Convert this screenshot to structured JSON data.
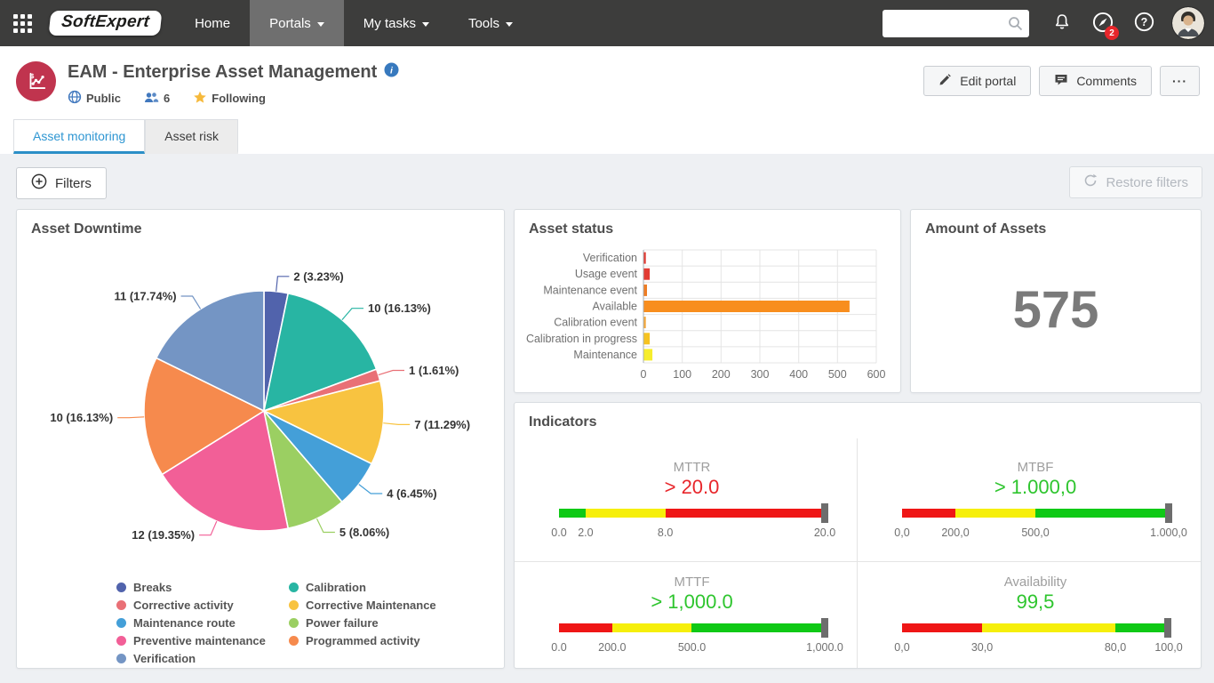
{
  "theme": {
    "navbar_bg": "#3d3d3c",
    "navbar_active_bg": "#6f6f6f",
    "accent_blue": "#2e96d2",
    "portal_icon_bg": "#c0344e",
    "badge_red": "#e8262b",
    "page_bg": "#eef0f3"
  },
  "icons": {
    "info": "i",
    "help": "?",
    "dollar": "$"
  },
  "navbar": {
    "logo": "SoftExpert",
    "items": [
      {
        "label": "Home",
        "active": false,
        "caret": false
      },
      {
        "label": "Portals",
        "active": true,
        "caret": true
      },
      {
        "label": "My tasks",
        "active": false,
        "caret": true
      },
      {
        "label": "Tools",
        "active": false,
        "caret": true
      }
    ],
    "search": {
      "value": "",
      "placeholder": ""
    },
    "monitoring_badge": "2"
  },
  "header": {
    "title": "EAM - Enterprise Asset Management",
    "visibility": "Public",
    "members_count": "6",
    "following": "Following",
    "edit_button": "Edit portal",
    "comments_button": "Comments",
    "more_button": "···"
  },
  "tabs": [
    {
      "label": "Asset monitoring",
      "active": true
    },
    {
      "label": "Asset risk",
      "active": false
    }
  ],
  "toolbar": {
    "filters_button": "Filters",
    "restore_button": "Restore filters"
  },
  "chart_data": [
    {
      "type": "pie",
      "title": "Asset Downtime",
      "labels": [
        "Breaks",
        "Calibration",
        "Corrective activity",
        "Corrective Maintenance",
        "Maintenance route",
        "Power failure",
        "Preventive maintenance",
        "Programmed activity",
        "Verification"
      ],
      "values": [
        2,
        10,
        1,
        7,
        4,
        5,
        12,
        10,
        11
      ],
      "labels_text": [
        "2 (3.23%)",
        "10 (16.13%)",
        "1 (1.61%)",
        "7 (11.29%)",
        "4 (6.45%)",
        "5 (8.06%)",
        "12 (19.35%)",
        "10 (16.13%)",
        "11 (17.74%)"
      ],
      "colors": [
        "#5163ac",
        "#28b5a3",
        "#e97076",
        "#f8c340",
        "#449fd8",
        "#9bcf62",
        "#f25f97",
        "#f68a4d",
        "#7495c4"
      ],
      "legend_position": "bottom"
    },
    {
      "type": "bar",
      "orientation": "horizontal",
      "title": "Asset status",
      "categories": [
        "Verification",
        "Usage event",
        "Maintenance event",
        "Available",
        "Calibration event",
        "Calibration in progress",
        "Maintenance"
      ],
      "values": [
        5,
        15,
        8,
        530,
        5,
        15,
        22
      ],
      "colors": [
        "#e23b33",
        "#e23b33",
        "#ef7d23",
        "#f88e1e",
        "#f4a93c",
        "#f6c321",
        "#f6ed2d"
      ],
      "xlim": [
        0,
        600
      ],
      "xticks": [
        0,
        100,
        200,
        300,
        400,
        500,
        600
      ],
      "grid": true
    },
    {
      "type": "number",
      "title": "Amount of Assets",
      "value": "575"
    },
    {
      "type": "bullet",
      "title": "Indicators",
      "gauges": [
        {
          "name": "MTTR",
          "value_text": "> 20.0",
          "value_color": "#e8262b",
          "segments": [
            {
              "to": 0.1,
              "color": "#0fc916"
            },
            {
              "to": 0.4,
              "color": "#f6ef0b"
            },
            {
              "to": 1,
              "color": "#ef1616"
            }
          ],
          "ticks": [
            {
              "label": "0.0",
              "pos": 0
            },
            {
              "label": "2.0",
              "pos": 10
            },
            {
              "label": "8.0",
              "pos": 40
            },
            {
              "label": "20.0",
              "pos": 100
            }
          ],
          "marker_pos": 100
        },
        {
          "name": "MTBF",
          "value_text": "> 1.000,0",
          "value_color": "#2ec52e",
          "segments": [
            {
              "to": 0.2,
              "color": "#ef1616"
            },
            {
              "to": 0.5,
              "color": "#f6ef0b"
            },
            {
              "to": 1,
              "color": "#0fc916"
            }
          ],
          "ticks": [
            {
              "label": "0,0",
              "pos": 0
            },
            {
              "label": "200,0",
              "pos": 20
            },
            {
              "label": "500,0",
              "pos": 50
            },
            {
              "label": "1.000,0",
              "pos": 100
            }
          ],
          "marker_pos": 100
        },
        {
          "name": "MTTF",
          "value_text": "> 1,000.0",
          "value_color": "#2ec52e",
          "segments": [
            {
              "to": 0.2,
              "color": "#ef1616"
            },
            {
              "to": 0.5,
              "color": "#f6ef0b"
            },
            {
              "to": 1,
              "color": "#0fc916"
            }
          ],
          "ticks": [
            {
              "label": "0.0",
              "pos": 0
            },
            {
              "label": "200.0",
              "pos": 20
            },
            {
              "label": "500.0",
              "pos": 50
            },
            {
              "label": "1,000.0",
              "pos": 100
            }
          ],
          "marker_pos": 100
        },
        {
          "name": "Availability",
          "value_text": "99,5",
          "value_color": "#2ec52e",
          "segments": [
            {
              "to": 0.3,
              "color": "#ef1616"
            },
            {
              "to": 0.8,
              "color": "#f6ef0b"
            },
            {
              "to": 1,
              "color": "#0fc916"
            }
          ],
          "ticks": [
            {
              "label": "0,0",
              "pos": 0
            },
            {
              "label": "30,0",
              "pos": 30
            },
            {
              "label": "80,0",
              "pos": 80
            },
            {
              "label": "100,0",
              "pos": 100
            }
          ],
          "marker_pos": 99.5
        }
      ]
    }
  ]
}
